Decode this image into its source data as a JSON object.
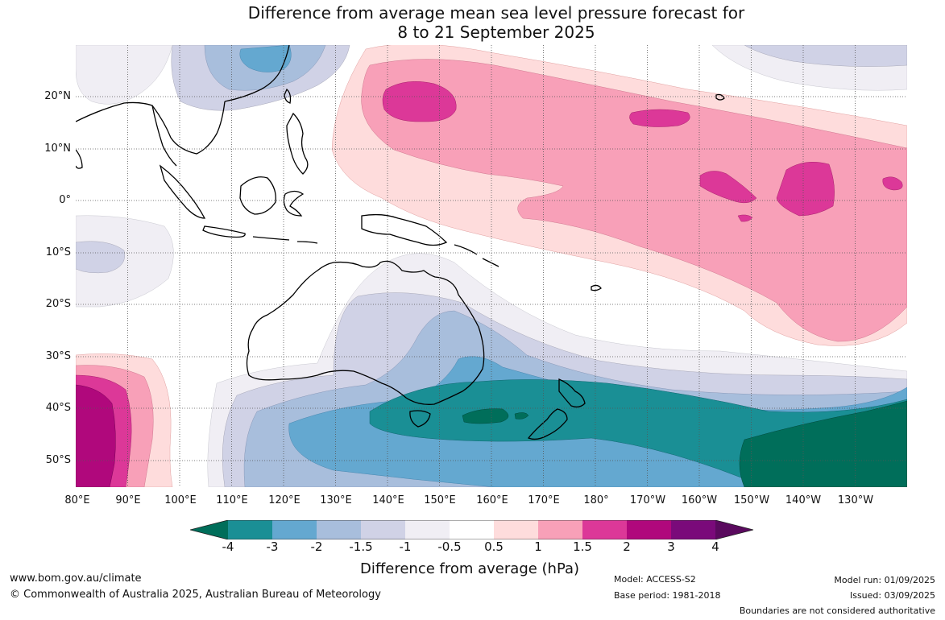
{
  "title": {
    "line1": "Difference from average mean sea level pressure forecast for",
    "line2": "8 to 21 September 2025"
  },
  "map": {
    "lat_labels": [
      "20°N",
      "10°N",
      "0°",
      "10°S",
      "20°S",
      "30°S",
      "40°S",
      "50°S"
    ],
    "lon_labels": [
      "80°E",
      "90°E",
      "100°E",
      "110°E",
      "120°E",
      "130°E",
      "140°E",
      "150°E",
      "160°E",
      "170°E",
      "180°",
      "170°W",
      "160°W",
      "150°W",
      "140°W",
      "130°W"
    ]
  },
  "legend": {
    "ticks": [
      "-4",
      "-3",
      "-2",
      "-1.5",
      "-1",
      "-0.5",
      "0.5",
      "1",
      "1.5",
      "2",
      "3",
      "4"
    ],
    "colors": [
      "#006e5a",
      "#1a8f95",
      "#64a8d0",
      "#a8bedc",
      "#d0d2e6",
      "#f0eef4",
      "#ffffff",
      "#fedcdc",
      "#f8a0b8",
      "#dc3898",
      "#b0087c",
      "#7a0a7a",
      "#5a0a5e"
    ],
    "label": "Difference from average (hPa)"
  },
  "footer": {
    "website": "www.bom.gov.au/climate",
    "copyright": "© Commonwealth of Australia 2025, Australian Bureau of Meteorology",
    "model": "Model: ACCESS-S2",
    "base_period": "Base period: 1981-2018",
    "model_run": "Model run: 01/09/2025",
    "issued": "Issued: 03/09/2025",
    "disclaimer": "Boundaries are not considered authoritative"
  }
}
